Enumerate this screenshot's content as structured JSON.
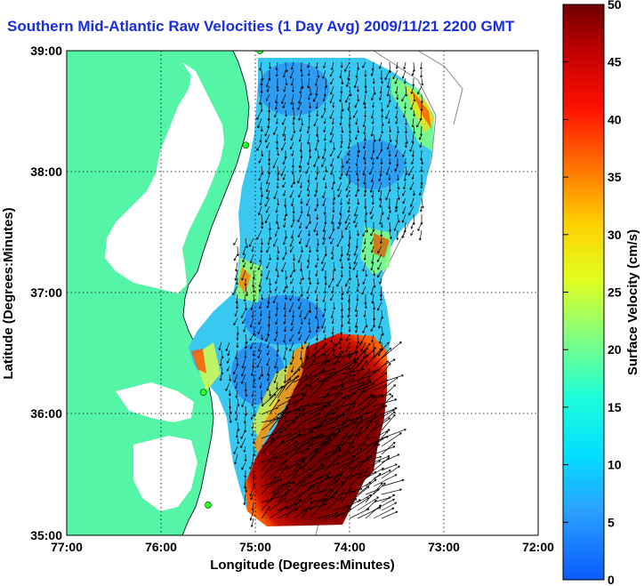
{
  "title": "Southern Mid-Atlantic Raw Velocities (1 Day Avg) 2009/11/21 2200 GMT",
  "x_axis": {
    "label": "Longitude (Degrees:Minutes)",
    "ticks": [
      "77:00",
      "76:00",
      "75:00",
      "74:00",
      "73:00",
      "72:00"
    ]
  },
  "y_axis": {
    "label": "Latitude (Degrees:Minutes)",
    "ticks": [
      "39:00",
      "38:00",
      "37:00",
      "36:00",
      "35:00"
    ]
  },
  "colorbar": {
    "label": "Surface Velocity (cm/s)",
    "ticks": [
      "50",
      "45",
      "40",
      "35",
      "30",
      "25",
      "20",
      "15",
      "10",
      "5",
      "0"
    ],
    "min": 0,
    "max": 50
  },
  "map": {
    "lon_range": [
      -77,
      -72
    ],
    "lat_range": [
      35,
      39
    ],
    "grid": true,
    "land_color": "#55f5a8",
    "water_color": "#ffffff",
    "stations": [
      {
        "lon": -74.95,
        "lat": 39.0
      },
      {
        "lon": -75.1,
        "lat": 38.22
      },
      {
        "lon": -75.55,
        "lat": 36.18
      },
      {
        "lon": -75.5,
        "lat": 35.25
      }
    ]
  },
  "colors": {
    "title": "#1a2ee0",
    "low": "#1e90ff",
    "high": "#7a0000"
  }
}
